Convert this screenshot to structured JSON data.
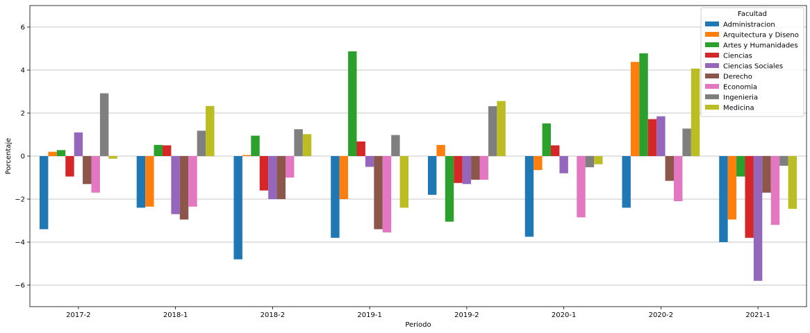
{
  "chart_data": {
    "type": "bar",
    "xlabel": "Periodo",
    "ylabel": "Porcentaje",
    "ylim": [
      -7,
      7
    ],
    "yticks": [
      -6,
      -4,
      -2,
      0,
      2,
      4,
      6
    ],
    "grid": "y",
    "legend": {
      "title": "Facultad",
      "position": "top-right"
    },
    "categories": [
      "2017-2",
      "2018-1",
      "2018-2",
      "2019-1",
      "2019-2",
      "2020-1",
      "2020-2",
      "2021-1"
    ],
    "series": [
      {
        "name": "Administracion",
        "color": "#1f77b4",
        "values": [
          -3.4,
          -2.4,
          -4.8,
          -3.8,
          -1.8,
          -3.75,
          -2.4,
          -4.0
        ]
      },
      {
        "name": "Arquitectura y Diseno",
        "color": "#ff7f0e",
        "values": [
          0.2,
          -2.35,
          0.05,
          -2.0,
          0.52,
          -0.65,
          4.38,
          -2.95
        ]
      },
      {
        "name": "Artes y Humanidades",
        "color": "#2ca02c",
        "values": [
          0.28,
          0.52,
          0.95,
          4.87,
          -3.05,
          1.52,
          4.78,
          -0.95
        ]
      },
      {
        "name": "Ciencias",
        "color": "#d62728",
        "values": [
          -0.95,
          0.5,
          -1.6,
          0.68,
          -1.25,
          0.5,
          1.72,
          -3.8
        ]
      },
      {
        "name": "Ciencias Sociales",
        "color": "#9467bd",
        "values": [
          1.1,
          -2.7,
          -2.0,
          -0.5,
          -1.3,
          -0.8,
          1.85,
          -5.8
        ]
      },
      {
        "name": "Derecho",
        "color": "#8c564b",
        "values": [
          -1.3,
          -2.95,
          -2.0,
          -3.4,
          -1.1,
          0.0,
          -1.15,
          -1.7
        ]
      },
      {
        "name": "Economia",
        "color": "#e377c2",
        "values": [
          -1.7,
          -2.35,
          -1.0,
          -3.55,
          -1.1,
          -2.85,
          -2.1,
          -3.2
        ]
      },
      {
        "name": "Ingenieria",
        "color": "#7f7f7f",
        "values": [
          2.92,
          1.18,
          1.25,
          0.98,
          2.32,
          -0.52,
          1.28,
          -0.45
        ]
      },
      {
        "name": "Medicina",
        "color": "#bcbd22",
        "values": [
          -0.12,
          2.33,
          1.02,
          -2.4,
          2.56,
          -0.38,
          4.07,
          -2.45
        ]
      }
    ]
  }
}
